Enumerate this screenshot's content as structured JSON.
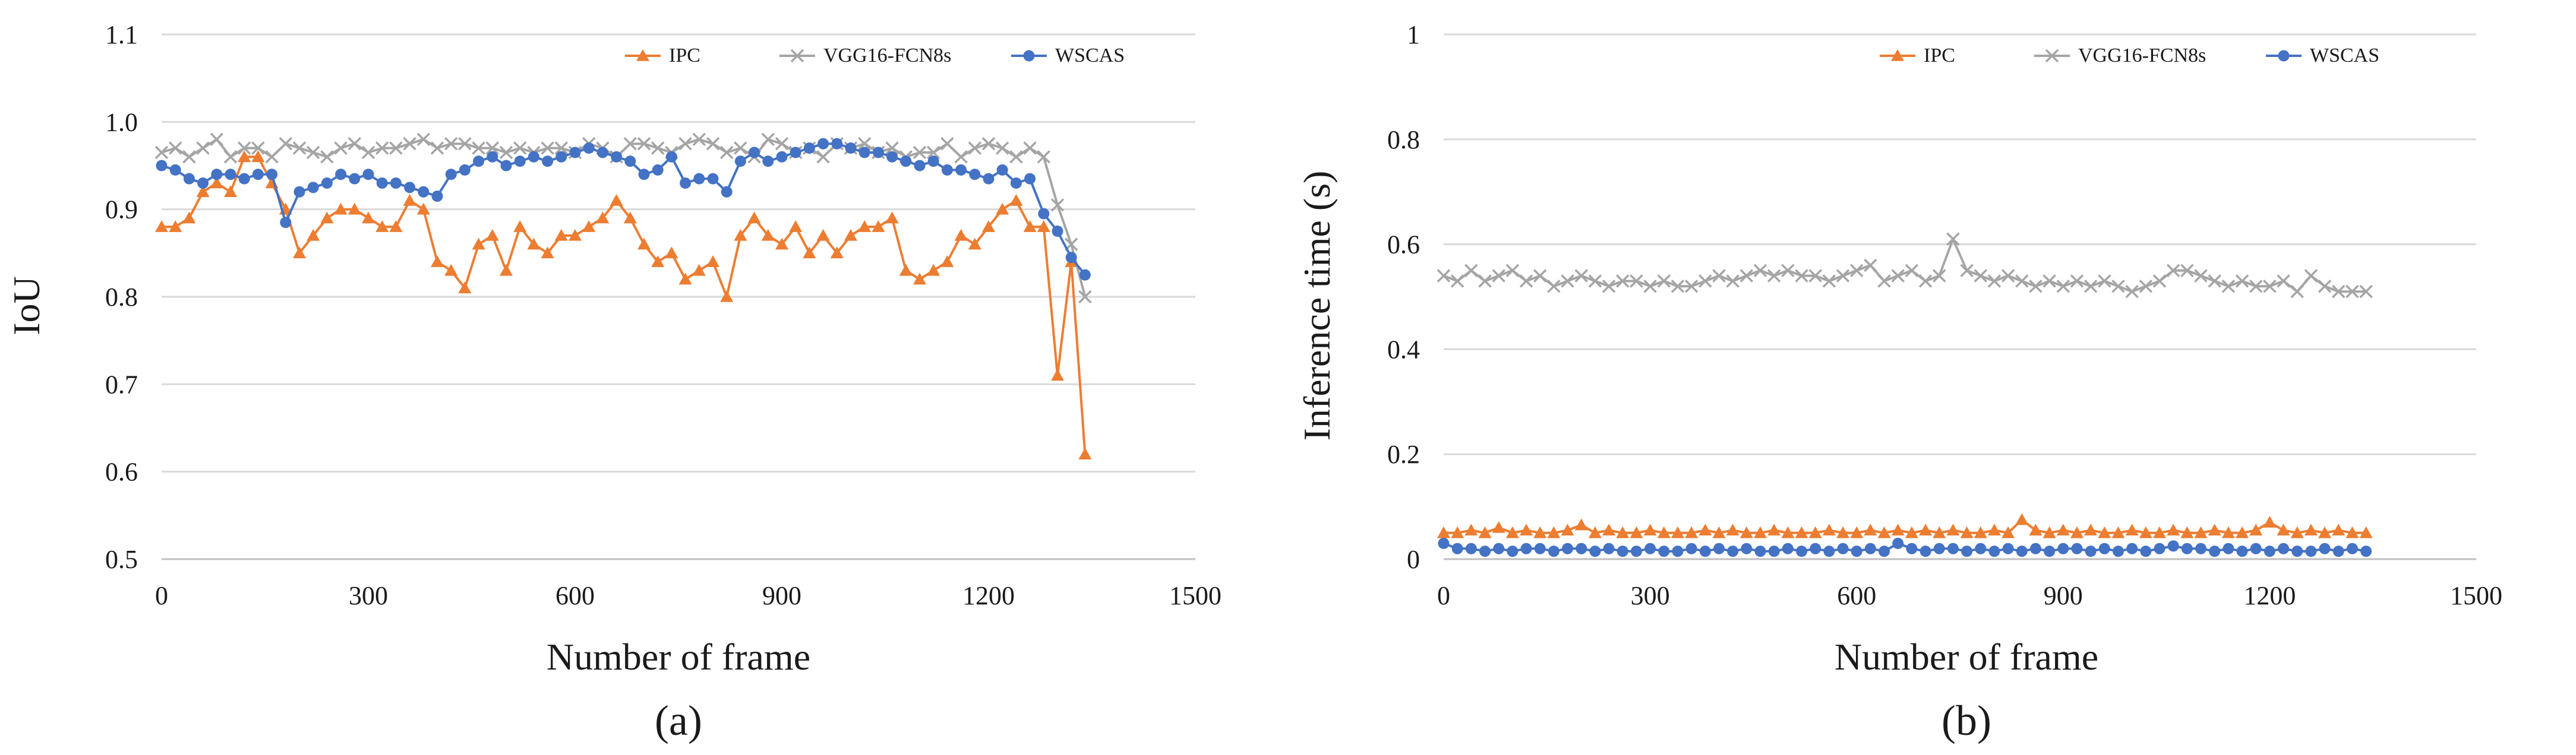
{
  "chart_data": [
    {
      "type": "line",
      "caption": "(a)",
      "xlabel": "Number of frame",
      "ylabel": "IoU",
      "xlim": [
        0,
        1500
      ],
      "ylim": [
        0.5,
        1.1
      ],
      "xticks": [
        0,
        300,
        600,
        900,
        1200,
        1500
      ],
      "xtick_labels": [
        "0",
        "300",
        "600",
        "900",
        "1200",
        "1500"
      ],
      "yticks": [
        0.5,
        0.6,
        0.7,
        0.8,
        0.9,
        1.0,
        1.1
      ],
      "ytick_labels": [
        "0.5",
        "0.6",
        "0.7",
        "0.8",
        "0.9",
        "1.0",
        "1.1"
      ],
      "legend_position": "top-right",
      "series": [
        {
          "name": "IPC",
          "color": "#ED7D31",
          "marker": "triangle",
          "x": [
            0,
            20,
            40,
            60,
            80,
            100,
            120,
            140,
            160,
            180,
            200,
            220,
            240,
            260,
            280,
            300,
            320,
            340,
            360,
            380,
            400,
            420,
            440,
            460,
            480,
            500,
            520,
            540,
            560,
            580,
            600,
            620,
            640,
            660,
            680,
            700,
            720,
            740,
            760,
            780,
            800,
            820,
            840,
            860,
            880,
            900,
            920,
            940,
            960,
            980,
            1000,
            1020,
            1040,
            1060,
            1080,
            1100,
            1120,
            1140,
            1160,
            1180,
            1200,
            1220,
            1240,
            1260,
            1280,
            1300,
            1320,
            1340
          ],
          "y": [
            0.88,
            0.88,
            0.89,
            0.92,
            0.93,
            0.92,
            0.96,
            0.96,
            0.93,
            0.9,
            0.85,
            0.87,
            0.89,
            0.9,
            0.9,
            0.89,
            0.88,
            0.88,
            0.91,
            0.9,
            0.84,
            0.83,
            0.81,
            0.86,
            0.87,
            0.83,
            0.88,
            0.86,
            0.85,
            0.87,
            0.87,
            0.88,
            0.89,
            0.91,
            0.89,
            0.86,
            0.84,
            0.85,
            0.82,
            0.83,
            0.84,
            0.8,
            0.87,
            0.89,
            0.87,
            0.86,
            0.88,
            0.85,
            0.87,
            0.85,
            0.87,
            0.88,
            0.88,
            0.89,
            0.83,
            0.82,
            0.83,
            0.84,
            0.87,
            0.86,
            0.88,
            0.9,
            0.91,
            0.88,
            0.88,
            0.71,
            0.84,
            0.62
          ]
        },
        {
          "name": "VGG16-FCN8s",
          "color": "#A5A5A5",
          "marker": "x",
          "x": [
            0,
            20,
            40,
            60,
            80,
            100,
            120,
            140,
            160,
            180,
            200,
            220,
            240,
            260,
            280,
            300,
            320,
            340,
            360,
            380,
            400,
            420,
            440,
            460,
            480,
            500,
            520,
            540,
            560,
            580,
            600,
            620,
            640,
            660,
            680,
            700,
            720,
            740,
            760,
            780,
            800,
            820,
            840,
            860,
            880,
            900,
            920,
            940,
            960,
            980,
            1000,
            1020,
            1040,
            1060,
            1080,
            1100,
            1120,
            1140,
            1160,
            1180,
            1200,
            1220,
            1240,
            1260,
            1280,
            1300,
            1320,
            1340
          ],
          "y": [
            0.965,
            0.97,
            0.96,
            0.97,
            0.98,
            0.96,
            0.97,
            0.97,
            0.96,
            0.975,
            0.97,
            0.965,
            0.96,
            0.97,
            0.975,
            0.965,
            0.97,
            0.97,
            0.975,
            0.98,
            0.97,
            0.975,
            0.975,
            0.97,
            0.97,
            0.965,
            0.97,
            0.965,
            0.97,
            0.97,
            0.965,
            0.975,
            0.97,
            0.96,
            0.975,
            0.975,
            0.97,
            0.965,
            0.975,
            0.98,
            0.975,
            0.965,
            0.97,
            0.96,
            0.98,
            0.975,
            0.965,
            0.97,
            0.96,
            0.975,
            0.97,
            0.975,
            0.965,
            0.97,
            0.96,
            0.965,
            0.965,
            0.975,
            0.96,
            0.97,
            0.975,
            0.97,
            0.96,
            0.97,
            0.96,
            0.905,
            0.86,
            0.8
          ]
        },
        {
          "name": "WSCAS",
          "color": "#4472C4",
          "marker": "circle",
          "x": [
            0,
            20,
            40,
            60,
            80,
            100,
            120,
            140,
            160,
            180,
            200,
            220,
            240,
            260,
            280,
            300,
            320,
            340,
            360,
            380,
            400,
            420,
            440,
            460,
            480,
            500,
            520,
            540,
            560,
            580,
            600,
            620,
            640,
            660,
            680,
            700,
            720,
            740,
            760,
            780,
            800,
            820,
            840,
            860,
            880,
            900,
            920,
            940,
            960,
            980,
            1000,
            1020,
            1040,
            1060,
            1080,
            1100,
            1120,
            1140,
            1160,
            1180,
            1200,
            1220,
            1240,
            1260,
            1280,
            1300,
            1320,
            1340
          ],
          "y": [
            0.95,
            0.945,
            0.935,
            0.93,
            0.94,
            0.94,
            0.935,
            0.94,
            0.94,
            0.885,
            0.92,
            0.925,
            0.93,
            0.94,
            0.935,
            0.94,
            0.93,
            0.93,
            0.925,
            0.92,
            0.915,
            0.94,
            0.945,
            0.955,
            0.96,
            0.95,
            0.955,
            0.96,
            0.955,
            0.96,
            0.965,
            0.97,
            0.965,
            0.96,
            0.955,
            0.94,
            0.945,
            0.96,
            0.93,
            0.935,
            0.935,
            0.92,
            0.955,
            0.965,
            0.955,
            0.96,
            0.965,
            0.97,
            0.975,
            0.975,
            0.97,
            0.965,
            0.965,
            0.96,
            0.955,
            0.95,
            0.955,
            0.945,
            0.945,
            0.94,
            0.935,
            0.945,
            0.93,
            0.935,
            0.895,
            0.875,
            0.845,
            0.825
          ]
        }
      ]
    },
    {
      "type": "line",
      "caption": "(b)",
      "xlabel": "Number of frame",
      "ylabel": "Inference time (s)",
      "xlim": [
        0,
        1500
      ],
      "ylim": [
        0,
        1
      ],
      "xticks": [
        0,
        300,
        600,
        900,
        1200,
        1500
      ],
      "xtick_labels": [
        "0",
        "300",
        "600",
        "900",
        "1200",
        "1500"
      ],
      "yticks": [
        0,
        0.2,
        0.4,
        0.6,
        0.8,
        1
      ],
      "ytick_labels": [
        "0",
        "0.2",
        "0.4",
        "0.6",
        "0.8",
        "1"
      ],
      "legend_position": "top-right",
      "series": [
        {
          "name": "IPC",
          "color": "#ED7D31",
          "marker": "triangle",
          "x": [
            0,
            20,
            40,
            60,
            80,
            100,
            120,
            140,
            160,
            180,
            200,
            220,
            240,
            260,
            280,
            300,
            320,
            340,
            360,
            380,
            400,
            420,
            440,
            460,
            480,
            500,
            520,
            540,
            560,
            580,
            600,
            620,
            640,
            660,
            680,
            700,
            720,
            740,
            760,
            780,
            800,
            820,
            840,
            860,
            880,
            900,
            920,
            940,
            960,
            980,
            1000,
            1020,
            1040,
            1060,
            1080,
            1100,
            1120,
            1140,
            1160,
            1180,
            1200,
            1220,
            1240,
            1260,
            1280,
            1300,
            1320,
            1340
          ],
          "y": [
            0.05,
            0.05,
            0.055,
            0.05,
            0.06,
            0.05,
            0.055,
            0.05,
            0.05,
            0.055,
            0.065,
            0.05,
            0.055,
            0.05,
            0.05,
            0.055,
            0.05,
            0.05,
            0.05,
            0.055,
            0.05,
            0.055,
            0.05,
            0.05,
            0.055,
            0.05,
            0.05,
            0.05,
            0.055,
            0.05,
            0.05,
            0.055,
            0.05,
            0.055,
            0.05,
            0.055,
            0.05,
            0.055,
            0.05,
            0.05,
            0.055,
            0.05,
            0.075,
            0.055,
            0.05,
            0.055,
            0.05,
            0.055,
            0.05,
            0.05,
            0.055,
            0.05,
            0.05,
            0.055,
            0.05,
            0.05,
            0.055,
            0.05,
            0.05,
            0.055,
            0.07,
            0.055,
            0.05,
            0.055,
            0.05,
            0.055,
            0.05,
            0.05
          ]
        },
        {
          "name": "VGG16-FCN8s",
          "color": "#A5A5A5",
          "marker": "x",
          "x": [
            0,
            20,
            40,
            60,
            80,
            100,
            120,
            140,
            160,
            180,
            200,
            220,
            240,
            260,
            280,
            300,
            320,
            340,
            360,
            380,
            400,
            420,
            440,
            460,
            480,
            500,
            520,
            540,
            560,
            580,
            600,
            620,
            640,
            660,
            680,
            700,
            720,
            740,
            760,
            780,
            800,
            820,
            840,
            860,
            880,
            900,
            920,
            940,
            960,
            980,
            1000,
            1020,
            1040,
            1060,
            1080,
            1100,
            1120,
            1140,
            1160,
            1180,
            1200,
            1220,
            1240,
            1260,
            1280,
            1300,
            1320,
            1340
          ],
          "y": [
            0.54,
            0.53,
            0.55,
            0.53,
            0.54,
            0.55,
            0.53,
            0.54,
            0.52,
            0.53,
            0.54,
            0.53,
            0.52,
            0.53,
            0.53,
            0.52,
            0.53,
            0.52,
            0.52,
            0.53,
            0.54,
            0.53,
            0.54,
            0.55,
            0.54,
            0.55,
            0.54,
            0.54,
            0.53,
            0.54,
            0.55,
            0.56,
            0.53,
            0.54,
            0.55,
            0.53,
            0.54,
            0.61,
            0.55,
            0.54,
            0.53,
            0.54,
            0.53,
            0.52,
            0.53,
            0.52,
            0.53,
            0.52,
            0.53,
            0.52,
            0.51,
            0.52,
            0.53,
            0.55,
            0.55,
            0.54,
            0.53,
            0.52,
            0.53,
            0.52,
            0.52,
            0.53,
            0.51,
            0.54,
            0.52,
            0.51,
            0.51,
            0.51
          ]
        },
        {
          "name": "WSCAS",
          "color": "#4472C4",
          "marker": "circle",
          "x": [
            0,
            20,
            40,
            60,
            80,
            100,
            120,
            140,
            160,
            180,
            200,
            220,
            240,
            260,
            280,
            300,
            320,
            340,
            360,
            380,
            400,
            420,
            440,
            460,
            480,
            500,
            520,
            540,
            560,
            580,
            600,
            620,
            640,
            660,
            680,
            700,
            720,
            740,
            760,
            780,
            800,
            820,
            840,
            860,
            880,
            900,
            920,
            940,
            960,
            980,
            1000,
            1020,
            1040,
            1060,
            1080,
            1100,
            1120,
            1140,
            1160,
            1180,
            1200,
            1220,
            1240,
            1260,
            1280,
            1300,
            1320,
            1340
          ],
          "y": [
            0.03,
            0.02,
            0.02,
            0.015,
            0.02,
            0.015,
            0.02,
            0.02,
            0.015,
            0.02,
            0.02,
            0.015,
            0.02,
            0.015,
            0.015,
            0.02,
            0.015,
            0.015,
            0.02,
            0.015,
            0.02,
            0.015,
            0.02,
            0.015,
            0.015,
            0.02,
            0.015,
            0.02,
            0.015,
            0.02,
            0.015,
            0.02,
            0.015,
            0.03,
            0.02,
            0.015,
            0.02,
            0.02,
            0.015,
            0.02,
            0.015,
            0.02,
            0.015,
            0.02,
            0.015,
            0.02,
            0.02,
            0.015,
            0.02,
            0.015,
            0.02,
            0.015,
            0.02,
            0.025,
            0.02,
            0.02,
            0.015,
            0.02,
            0.015,
            0.02,
            0.015,
            0.02,
            0.015,
            0.015,
            0.02,
            0.015,
            0.02,
            0.015
          ]
        }
      ]
    }
  ]
}
